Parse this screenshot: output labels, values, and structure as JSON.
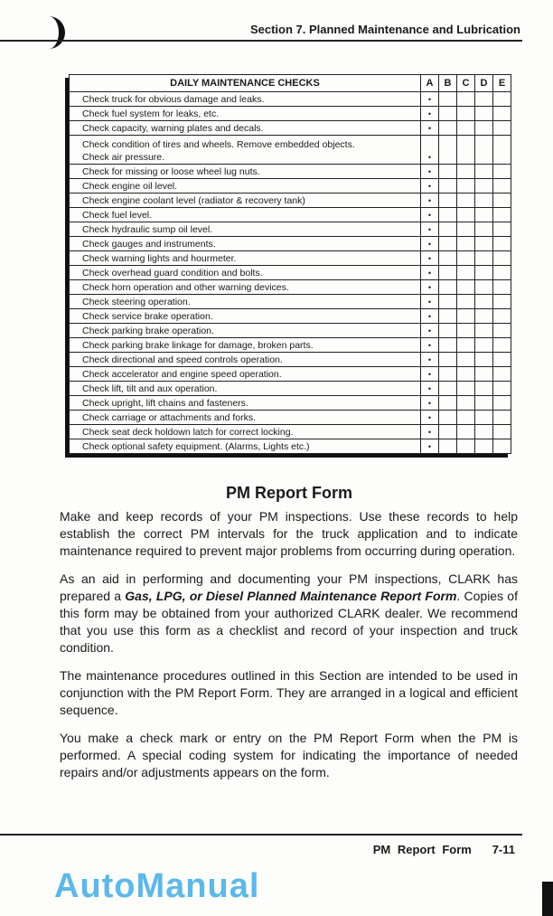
{
  "header": {
    "section": "Section 7.  Planned Maintenance and Lubrication"
  },
  "table": {
    "title": "DAILY MAINTENANCE CHECKS",
    "columns": [
      "A",
      "B",
      "C",
      "D",
      "E"
    ],
    "mark": "•",
    "rows": [
      "Check truck for obvious damage and leaks.",
      "Check fuel system for leaks, etc.",
      "Check capacity, warning plates and decals.",
      "Check condition of tires and wheels. Remove embedded objects. Check air pressure.",
      "Check for missing or loose wheel lug nuts.",
      "Check engine oil level.",
      "Check engine coolant level (radiator & recovery tank)",
      "Check fuel level.",
      "Check hydraulic sump oil level.",
      "Check gauges and instruments.",
      "Check warning lights and hourmeter.",
      "Check overhead guard condition and bolts.",
      "Check horn operation and other warning devices.",
      "Check steering operation.",
      "Check service brake operation.",
      "Check parking brake operation.",
      "Check parking brake linkage for damage, broken parts.",
      "Check directional and speed controls operation.",
      "Check accelerator and engine speed operation.",
      "Check lift, tilt and aux operation.",
      "Check upright, lift chains and fasteners.",
      "Check carriage or attachments and forks.",
      "Check seat deck holdown latch for correct locking.",
      "Check optional safety equipment. (Alarms, Lights etc.)"
    ]
  },
  "section_title": "PM Report Form",
  "paragraphs": {
    "p1": "Make and keep records of your PM inspections. Use these records to help establish the correct PM intervals for the truck application and to indicate maintenance required to prevent major problems from occurring during operation.",
    "p2a": "As an aid in performing and documenting your PM inspections, CLARK has prepared a ",
    "p2b": "Gas, LPG, or Diesel Planned Maintenance Report Form",
    "p2c": ". Copies of this form may be obtained from your authorized CLARK dealer. We recommend that you use this form as a checklist and record of your inspection and truck condition.",
    "p3": "The maintenance procedures outlined in this Section are intended to be used in conjunction with the PM Report Form. They are arranged in a logical and efficient sequence.",
    "p4": "You make a check mark or entry on the PM Report Form when the PM is performed. A special coding system for indicating the importance of needed repairs and/or adjustments appears on the form."
  },
  "footer": {
    "label": "PM Report Form",
    "page": "7-11"
  },
  "watermark": "AutoManual",
  "colors": {
    "watermark": "#28a0e1",
    "ink": "#1a1a1a"
  }
}
